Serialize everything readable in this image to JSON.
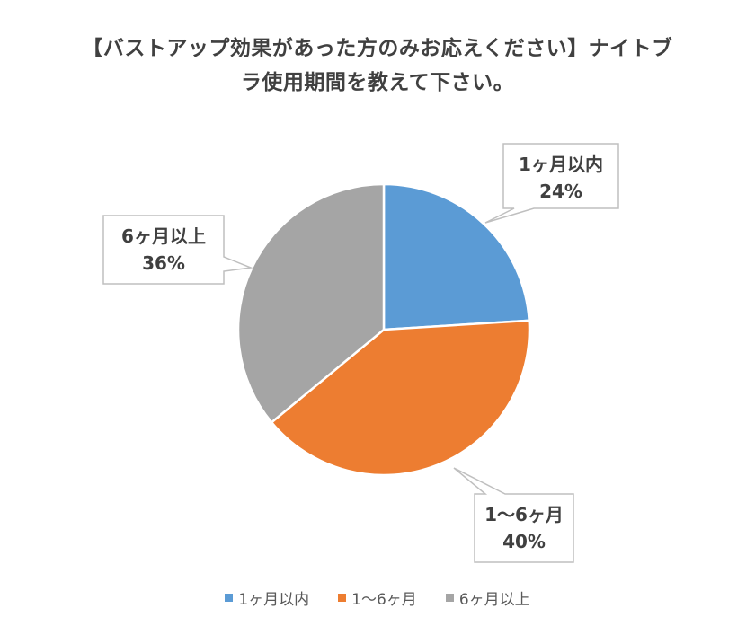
{
  "chart_data": {
    "type": "pie",
    "title_lines": [
      "【バストアップ効果があった方のみお応えください】ナイトブ",
      "ラ使用期間を教えて下さい。"
    ],
    "categories": [
      "1ヶ月以内",
      "1～6ヶ月",
      "6ヶ月以上"
    ],
    "values": [
      24,
      40,
      36
    ],
    "value_labels": [
      "24%",
      "40%",
      "36%"
    ],
    "colors": [
      "#5B9BD5",
      "#ED7D31",
      "#A5A5A5"
    ],
    "start_angle_deg": 0,
    "direction": "clockwise",
    "legend_position": "bottom"
  }
}
